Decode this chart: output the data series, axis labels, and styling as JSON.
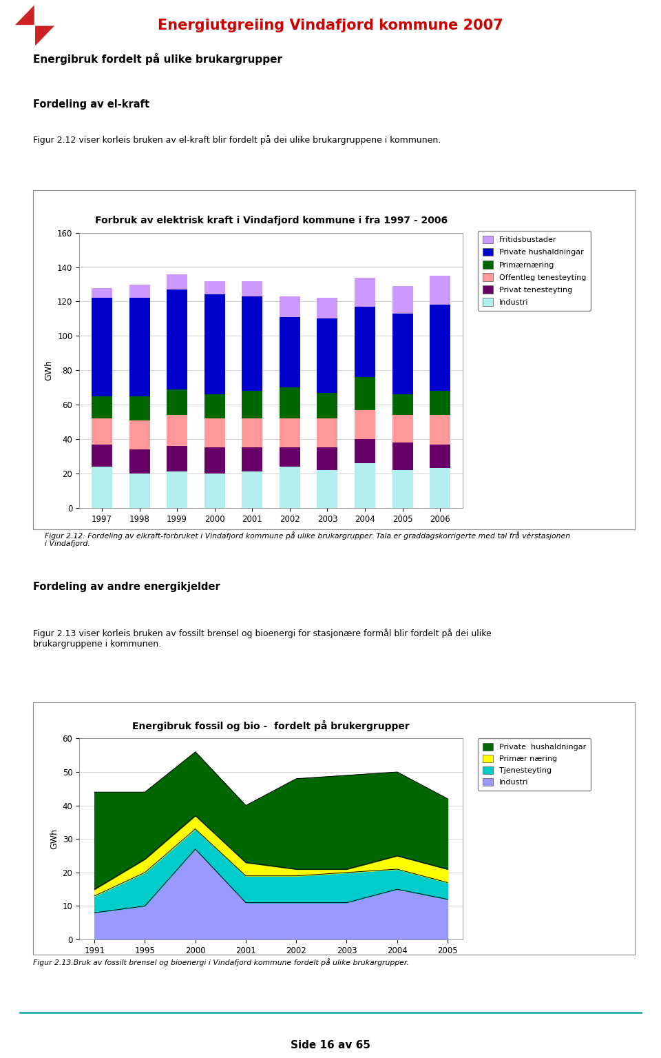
{
  "page_title": "Energiutgreiing Vindafjord kommune 2007",
  "page_title_color": "#cc0000",
  "bg_color": "#ffffff",
  "section1_bold": "Energibruk fordelt på ulike brukargrupper",
  "section2_bold": "Fordeling av el-kraft",
  "section2_text": "Figur 2.12 viser korleis bruken av el-kraft blir fordelt på dei ulike brukargruppene i kommunen.",
  "chart1_title": "Forbruk av elektrisk kraft i Vindafjord kommune i fra 1997 - 2006",
  "chart1_ylabel": "GWh",
  "chart1_ylim": [
    0,
    160
  ],
  "chart1_yticks": [
    0,
    20,
    40,
    60,
    80,
    100,
    120,
    140,
    160
  ],
  "chart1_years": [
    1997,
    1998,
    1999,
    2000,
    2001,
    2002,
    2003,
    2004,
    2005,
    2006
  ],
  "chart1_industri": [
    24,
    20,
    21,
    20,
    21,
    24,
    22,
    26,
    22,
    23
  ],
  "chart1_privat_tene": [
    13,
    14,
    15,
    15,
    14,
    11,
    13,
    14,
    16,
    14
  ],
  "chart1_offentleg": [
    15,
    17,
    18,
    17,
    17,
    17,
    17,
    17,
    16,
    17
  ],
  "chart1_primaer": [
    13,
    14,
    15,
    14,
    16,
    18,
    15,
    19,
    12,
    14
  ],
  "chart1_private_hush": [
    57,
    57,
    58,
    58,
    55,
    41,
    43,
    41,
    47,
    50
  ],
  "chart1_fritid": [
    6,
    8,
    9,
    8,
    9,
    12,
    12,
    17,
    16,
    17
  ],
  "chart1_colors": {
    "Industri": "#b2eeee",
    "Privat tenesteyting": "#660066",
    "Offentleg tenesteyting": "#ff9999",
    "Primærnæring": "#006600",
    "Private hushaldningar": "#0000cc",
    "Fritidsbustader": "#cc99ff"
  },
  "chart1_legend_labels": [
    "Fritidsbustader",
    "Private hushaldningar",
    "Primærnæring",
    "Offentleg tenesteyting",
    "Privat tenesteyting",
    "Industri"
  ],
  "fig212_caption": "Figur 2.12: Fordeling av elkraft-forbruket i Vindafjord kommune på ulike brukargrupper. Tala er graddagskorrigerte med tal frå vêrstasjonen\ni Vindafjord.",
  "section3_bold": "Fordeling av andre energikjelder",
  "section3_text": "Figur 2.13 viser korleis bruken av fossilt brensel og bioenergi for stasjonære formål blir fordelt på dei ulike\nbrukargruppene i kommunen.",
  "chart2_title": "Energibruk fossil og bio -  fordelt på brukergrupper",
  "chart2_ylabel": "GWh",
  "chart2_ylim": [
    0,
    60
  ],
  "chart2_yticks": [
    0,
    10,
    20,
    30,
    40,
    50,
    60
  ],
  "chart2_years": [
    1991,
    1995,
    2000,
    2001,
    2002,
    2003,
    2004,
    2005
  ],
  "chart2_industri": [
    8,
    10,
    27,
    11,
    11,
    11,
    15,
    12
  ],
  "chart2_tjenesteyting": [
    5,
    10,
    6,
    8,
    8,
    9,
    6,
    5
  ],
  "chart2_primaer": [
    2,
    4,
    4,
    4,
    2,
    1,
    4,
    4
  ],
  "chart2_private_hush": [
    29,
    20,
    19,
    17,
    27,
    28,
    25,
    21
  ],
  "chart2_colors": {
    "Industri": "#9999ff",
    "Tjenesteyting": "#00cccc",
    "Primær næring": "#ffff00",
    "Private hushaldningar": "#006600"
  },
  "chart2_legend_labels": [
    "Private  hushaldningar",
    "Primær næring",
    "Tjenesteyting",
    "Industri"
  ],
  "fig213_caption": "Figur 2.13.Bruk av fossilt brensel og bioenergi i Vindafjord kommune fordelt på ulike brukargrupper.",
  "footer_line_color": "#22aaaa",
  "footer_text": "Side 16 av 65"
}
